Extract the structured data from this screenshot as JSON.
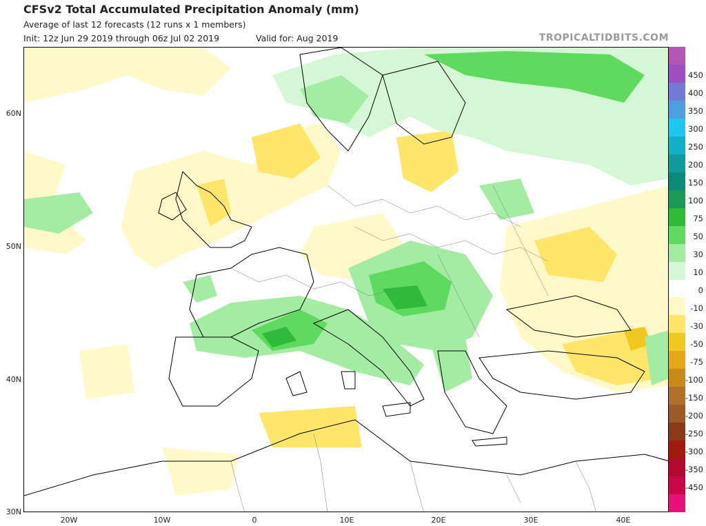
{
  "header": {
    "title": "CFSv2 Total Accumulated Precipitation Anomaly (mm)",
    "subtitle": "Average of last 12 forecasts (12 runs x 1 members)",
    "init": "Init: 12z Jun 29 2019 through 06z Jul 02 2019",
    "valid": "Valid for: Aug 2019",
    "brand": "TROPICALTIDBITS.COM"
  },
  "axes": {
    "lat_labels": [
      "60N",
      "50N",
      "40N",
      "30N"
    ],
    "lon_labels": [
      "20W",
      "10W",
      "0",
      "10E",
      "20E",
      "30E",
      "40E"
    ]
  },
  "legend": {
    "labels": [
      "450",
      "400",
      "350",
      "300",
      "250",
      "200",
      "150",
      "100",
      "75",
      "50",
      "30",
      "10",
      "0",
      "-10",
      "-30",
      "-50",
      "-75",
      "-100",
      "-150",
      "-200",
      "-250",
      "-300",
      "-350",
      "-450"
    ],
    "colors": [
      "#b455b4",
      "#9c4fc0",
      "#6f7bd6",
      "#4f9fe0",
      "#1ec6f0",
      "#14b0c8",
      "#119a9a",
      "#0e8a7a",
      "#1a9a55",
      "#2fba3a",
      "#5fd95f",
      "#a4eba4",
      "#d6f7d6",
      "#ffffff",
      "#fff8c8",
      "#fde66a",
      "#f0c820",
      "#e6a818",
      "#c88a18",
      "#b0702a",
      "#9a5a2a",
      "#8a3a1a",
      "#a01a10",
      "#b00a30",
      "#c80848",
      "#e8107a"
    ]
  },
  "map_regions": {
    "regions": [
      "green-anomaly",
      "yellow-anomaly"
    ]
  }
}
